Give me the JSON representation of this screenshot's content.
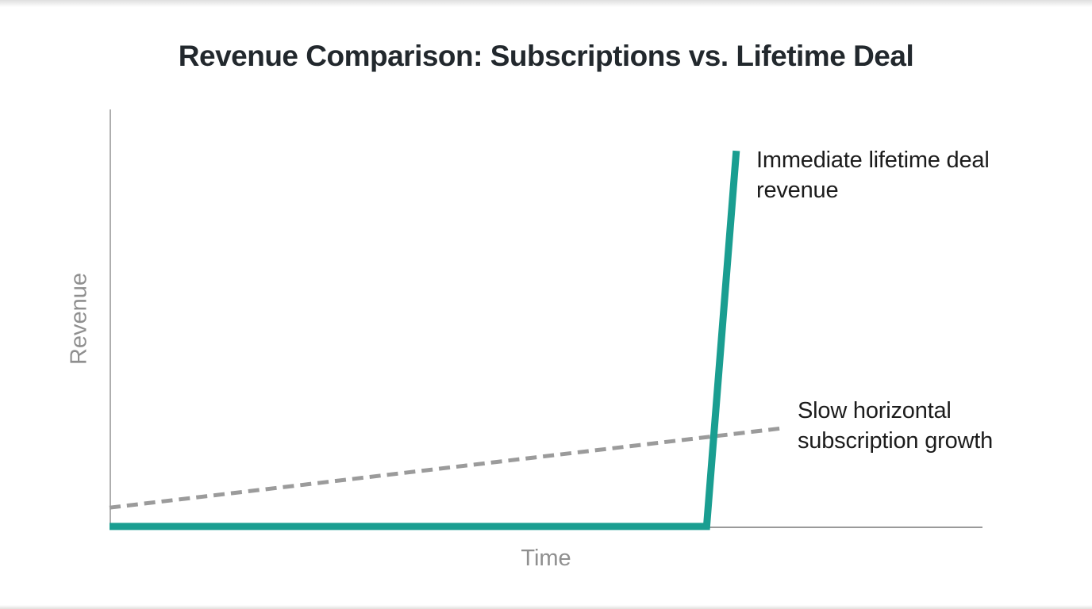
{
  "chart_data": {
    "type": "line",
    "title": "Revenue Comparison: Subscriptions vs. Lifetime Deal",
    "xlabel": "Time",
    "ylabel": "Revenue",
    "x_range": [
      0,
      1
    ],
    "y_range": [
      0,
      1
    ],
    "grid": false,
    "tick_labels": "none",
    "legend_position": "none (inline annotations)",
    "colors": {
      "title": "#22282d",
      "axis_label": "#8f8f8f",
      "y_axis_line": "#aeaeae",
      "x_axis_line": "#9a9a9a",
      "lifetime_deal_line": "#1A9E91",
      "subscription_line": "#9B9B9B",
      "annotation_text": "#1c1c1c"
    },
    "series": [
      {
        "name": "Slow horizontal subscription growth",
        "line_style": "dashed",
        "color": "#9B9B9B",
        "stroke_width": 5,
        "dash_pattern": [
          14,
          8
        ],
        "points": [
          [
            0,
            0.047
          ],
          [
            0.77,
            0.237
          ]
        ]
      },
      {
        "name": "Immediate lifetime deal revenue",
        "line_style": "solid",
        "color": "#1A9E91",
        "stroke_width": 9,
        "points": [
          [
            0,
            0.002
          ],
          [
            0.684,
            0.002
          ],
          [
            0.718,
            0.901
          ]
        ]
      }
    ],
    "annotations": [
      {
        "lines": [
          "Immediate lifetime deal",
          "revenue"
        ],
        "x": 0.741,
        "y": 0.915,
        "color": "#1c1c1c"
      },
      {
        "lines": [
          "Slow horizontal",
          "subscription growth"
        ],
        "x": 0.788,
        "y": 0.316,
        "color": "#1c1c1c"
      }
    ]
  }
}
